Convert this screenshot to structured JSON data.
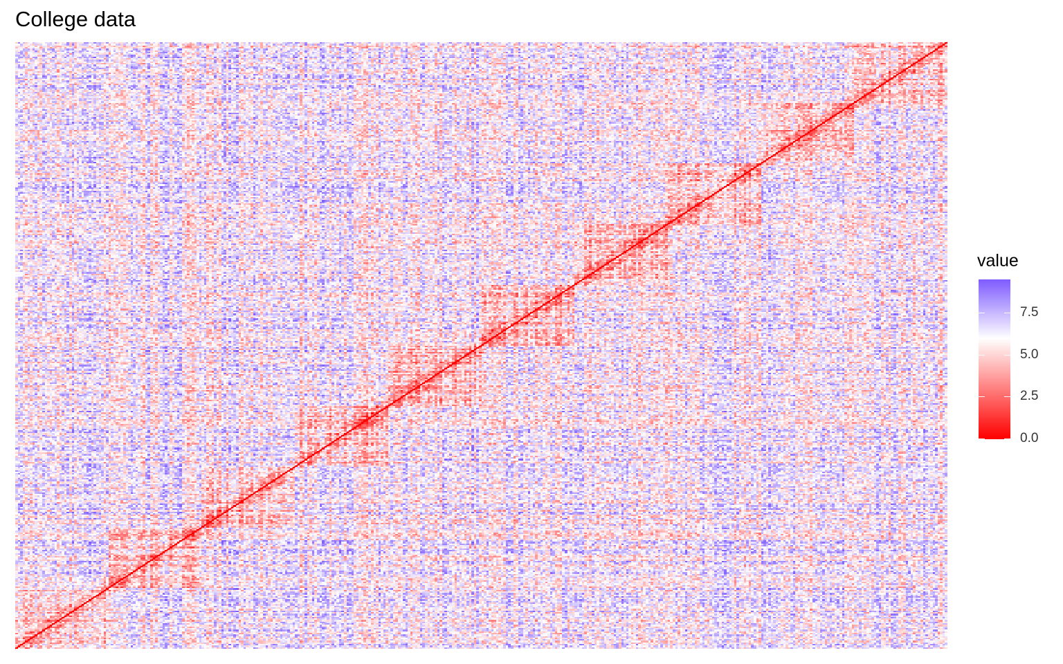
{
  "title": "College data",
  "chart_data": {
    "type": "heatmap",
    "title": "College data",
    "xlabel": "",
    "ylabel": "",
    "color_scale": {
      "low": "#FF0000",
      "mid": "#FFFFFF",
      "high": "#7F5CFF",
      "min": 0.0,
      "midpoint": 6.0,
      "max": 9.5
    },
    "diagonal_value": 0.0,
    "typical_value_range": [
      2.5,
      9.5
    ],
    "legend": {
      "title": "value",
      "ticks": [
        "7.5",
        "5.0",
        "2.5",
        "0.0"
      ],
      "tick_values": [
        7.5,
        5.0,
        2.5,
        0.0
      ],
      "position": "right"
    },
    "grid": false,
    "axes_visible": false
  }
}
